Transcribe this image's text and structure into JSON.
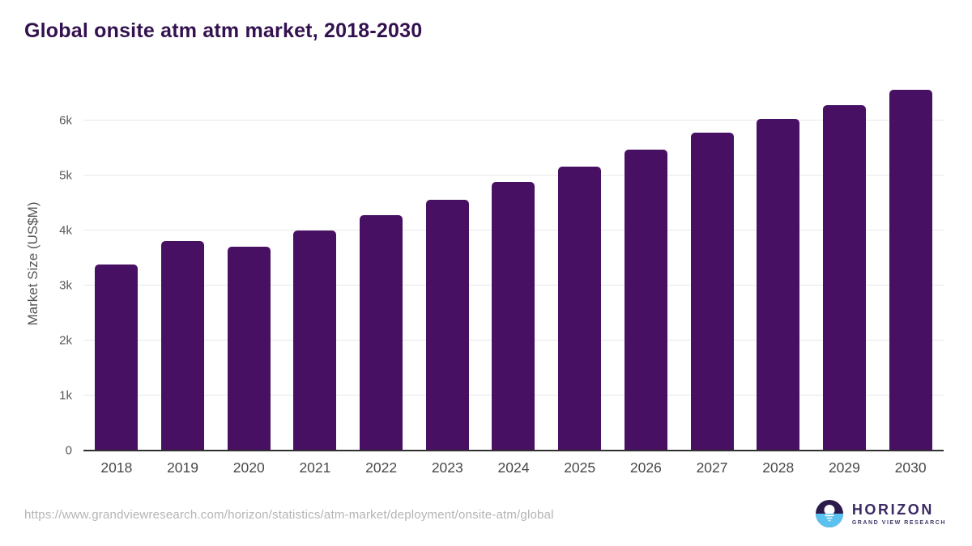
{
  "header": {
    "title": "Global onsite atm atm market, 2018-2030"
  },
  "chart_data": {
    "type": "bar",
    "title": "Global onsite atm atm market, 2018-2030",
    "categories": [
      "2018",
      "2019",
      "2020",
      "2021",
      "2022",
      "2023",
      "2024",
      "2025",
      "2026",
      "2027",
      "2028",
      "2029",
      "2030"
    ],
    "values": [
      3390,
      3805,
      3715,
      4000,
      4290,
      4570,
      4880,
      5170,
      5470,
      5790,
      6030,
      6290,
      6560
    ],
    "xlabel": "",
    "ylabel": "Market Size (US$M)",
    "ylim": [
      0,
      6800
    ],
    "yticks": [
      0,
      1000,
      2000,
      3000,
      4000,
      5000,
      6000
    ],
    "ytick_labels": [
      "0",
      "1k",
      "2k",
      "3k",
      "4k",
      "5k",
      "6k"
    ],
    "bar_color": "#471063",
    "grid": true,
    "legend": "none"
  },
  "footer": {
    "source_url": "https://www.grandviewresearch.com/horizon/statistics/atm-market/deployment/onsite-atm/global",
    "logo_title": "HORIZON",
    "logo_subtitle": "GRAND VIEW RESEARCH"
  },
  "colors": {
    "title": "#33114f",
    "bar": "#471063",
    "axis_line": "#303030",
    "gridline": "#e8e8e8",
    "tick_label": "#575757",
    "url_text": "#b4b4b4",
    "logo_dark": "#2b1b4a",
    "logo_blue": "#5bc2f0"
  }
}
